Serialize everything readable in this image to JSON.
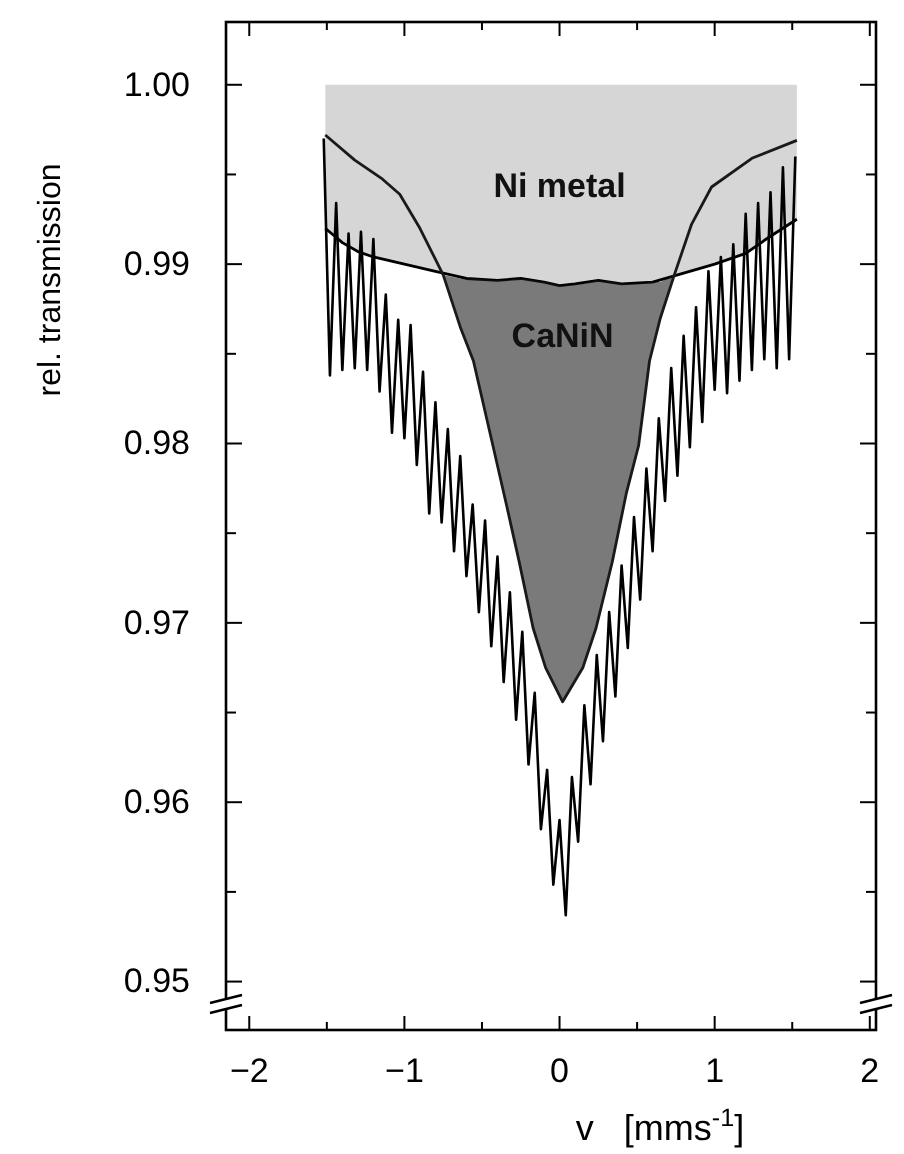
{
  "chart_data": {
    "type": "line",
    "xlabel": "v   [mms$^{-1}$]",
    "ylabel": "rel. transmission",
    "xlim": [
      -2.15,
      2.04
    ],
    "ylim": [
      0.9473,
      1.0035
    ],
    "xticks": [
      {
        "value": -2,
        "label": "−2"
      },
      {
        "value": -1.5,
        "label": null
      },
      {
        "value": -1,
        "label": "−1"
      },
      {
        "value": -0.5,
        "label": null
      },
      0,
      {
        "value": 0.5,
        "label": null
      },
      1,
      {
        "value": 1.5,
        "label": null
      },
      2
    ],
    "yticks": [
      {
        "value": 0.95,
        "label": "0.95"
      },
      {
        "value": 0.955,
        "label": null
      },
      {
        "value": 0.96,
        "label": "0.96"
      },
      {
        "value": 0.965,
        "label": null
      },
      {
        "value": 0.97,
        "label": "0.97"
      },
      {
        "value": 0.975,
        "label": null
      },
      {
        "value": 0.98,
        "label": "0.98"
      },
      {
        "value": 0.985,
        "label": null
      },
      {
        "value": 0.99,
        "label": "0.99"
      },
      {
        "value": 0.995,
        "label": null
      },
      {
        "value": 1,
        "label": "1.00"
      }
    ],
    "grid": false,
    "legend": false,
    "marker": "none",
    "line_style": "solid",
    "series": [
      {
        "name": "Ni metal",
        "color": "#000000",
        "x": [
          -1.51,
          -1.4,
          -1.3,
          -1.2,
          -1.0,
          -0.8,
          -0.6,
          -0.4,
          -0.25,
          -0.1,
          0,
          0.1,
          0.25,
          0.4,
          0.6,
          0.8,
          1.0,
          1.2,
          1.35,
          1.53
        ],
        "values": [
          0.992,
          0.9912,
          0.9907,
          0.9904,
          0.99,
          0.9896,
          0.9892,
          0.9891,
          0.9892,
          0.989,
          0.9888,
          0.9889,
          0.9891,
          0.9889,
          0.989,
          0.9895,
          0.99,
          0.9906,
          0.9915,
          0.9925
        ],
        "lower": [
          0.992,
          0.9912,
          0.9907,
          0.9904,
          0.99,
          0.9896,
          0.9892,
          0.9891,
          0.9892,
          0.989,
          0.9888,
          0.9889,
          0.9891,
          0.9889,
          0.989,
          0.9895,
          0.99,
          0.9906,
          0.9915,
          0.9925
        ],
        "upper": [
          1,
          1,
          1,
          1,
          1,
          1,
          1,
          1,
          1,
          1,
          1,
          1,
          1,
          1,
          1,
          1,
          1,
          1,
          1,
          1
        ]
      },
      {
        "name": "CaNiN",
        "color": "#1a1a1a",
        "x": [
          -1.51,
          -1.32,
          -1.15,
          -1.03,
          -0.9,
          -0.75,
          -0.64,
          -0.555,
          -0.43,
          -0.34,
          -0.26,
          -0.17,
          -0.09,
          0.02,
          0.15,
          0.235,
          0.34,
          0.43,
          0.51,
          0.58,
          0.65,
          0.74,
          0.85,
          0.98,
          1.24,
          1.53
        ],
        "values": [
          0.9972,
          0.9958,
          0.9948,
          0.9939,
          0.992,
          0.9894,
          0.9865,
          0.9846,
          0.9799,
          0.9765,
          0.9734,
          0.9697,
          0.9675,
          0.9656,
          0.9675,
          0.9697,
          0.9734,
          0.9772,
          0.9799,
          0.9846,
          0.987,
          0.9894,
          0.9922,
          0.9943,
          0.9959,
          0.9969
        ],
        "lower": [
          null,
          null,
          null,
          null,
          null,
          0.9894,
          0.9865,
          0.9846,
          0.9799,
          0.9765,
          0.9734,
          0.9697,
          0.9675,
          0.9656,
          0.9675,
          0.9697,
          0.9734,
          0.9772,
          0.9799,
          0.9846,
          0.987,
          0.9894,
          null,
          null,
          null,
          null
        ],
        "upper": [
          null,
          null,
          null,
          null,
          null,
          0.9894,
          0.9892,
          0.9892,
          0.9891,
          0.9891,
          0.9892,
          0.9891,
          0.989,
          0.9888,
          0.9889,
          0.9891,
          0.989,
          0.9889,
          0.9889,
          0.989,
          0.989,
          0.9894,
          null,
          null,
          null,
          null
        ]
      },
      {
        "color": "#000000",
        "x": [
          -1.52,
          -1.48,
          -1.44,
          -1.4,
          -1.36,
          -1.32,
          -1.28,
          -1.24,
          -1.2,
          -1.16,
          -1.12,
          -1.08,
          -1.04,
          -1,
          -0.96,
          -0.92,
          -0.88,
          -0.84,
          -0.8,
          -0.76,
          -0.72,
          -0.68,
          -0.64,
          -0.6,
          -0.56,
          -0.52,
          -0.48,
          -0.44,
          -0.4,
          -0.36,
          -0.32,
          -0.28,
          -0.24,
          -0.2,
          -0.16,
          -0.12,
          -0.08,
          -0.04,
          0,
          0.04,
          0.08,
          0.12,
          0.16,
          0.2,
          0.24,
          0.28,
          0.32,
          0.36,
          0.4,
          0.44,
          0.48,
          0.52,
          0.56,
          0.6,
          0.64,
          0.68,
          0.72,
          0.76,
          0.8,
          0.84,
          0.88,
          0.92,
          0.96,
          1,
          1.04,
          1.08,
          1.12,
          1.16,
          1.2,
          1.24,
          1.28,
          1.32,
          1.36,
          1.4,
          1.44,
          1.48,
          1.52
        ],
        "values": [
          0.997,
          0.9838,
          0.9934,
          0.9841,
          0.9917,
          0.9842,
          0.9918,
          0.9841,
          0.9914,
          0.9829,
          0.9883,
          0.9806,
          0.9869,
          0.9803,
          0.9866,
          0.9788,
          0.984,
          0.9761,
          0.9823,
          0.9756,
          0.9808,
          0.974,
          0.9793,
          0.9726,
          0.9766,
          0.9706,
          0.9757,
          0.9687,
          0.9737,
          0.9667,
          0.9717,
          0.9646,
          0.9695,
          0.9621,
          0.9661,
          0.9585,
          0.9618,
          0.9554,
          0.959,
          0.9537,
          0.9614,
          0.9578,
          0.9654,
          0.961,
          0.9682,
          0.9634,
          0.9706,
          0.9659,
          0.9732,
          0.9686,
          0.9759,
          0.9713,
          0.9786,
          0.974,
          0.9814,
          0.9768,
          0.9842,
          0.9782,
          0.986,
          0.9798,
          0.9876,
          0.9812,
          0.9896,
          0.983,
          0.9904,
          0.9828,
          0.9911,
          0.9835,
          0.9928,
          0.9841,
          0.9934,
          0.9847,
          0.994,
          0.9842,
          0.9954,
          0.9847,
          0.996
        ]
      }
    ]
  }
}
